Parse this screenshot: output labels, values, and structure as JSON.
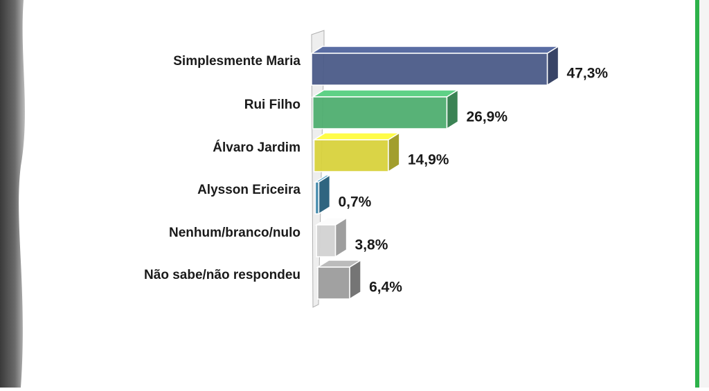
{
  "chart_data": {
    "type": "bar",
    "orientation": "horizontal",
    "categories": [
      "Simplesmente Maria",
      "Rui Filho",
      "Álvaro Jardim",
      "Alysson Ericeira",
      "Nenhum/branco/nulo",
      "Não sabe/não respondeu"
    ],
    "series": [
      {
        "values": [
          47.3,
          26.9,
          14.9,
          0.7,
          3.8,
          6.4
        ],
        "value_labels": [
          "47,3%",
          "26,9%",
          "14,9%",
          "0,7%",
          "3,8%",
          "6,4%"
        ],
        "colors": [
          "#4b5b88",
          "#4fae70",
          "#d8d23c",
          "#3f87aa",
          "#d2d2d2",
          "#9c9c9c"
        ]
      }
    ]
  }
}
